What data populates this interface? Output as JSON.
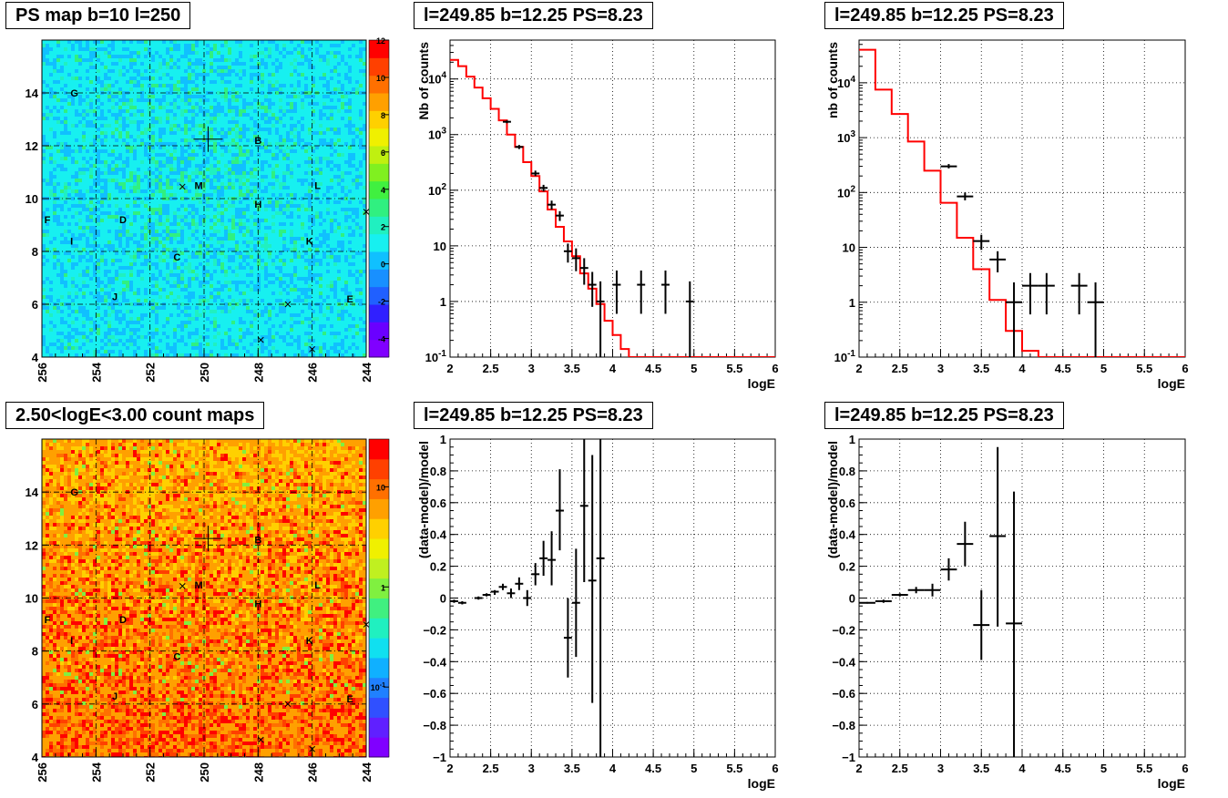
{
  "colors": {
    "frame": "#000000",
    "grid": "#000000",
    "model_line": "#ff0000",
    "data_marker": "#000000",
    "map_bg_ps": "#17f0f0",
    "map_bg_counts": "#f0a020"
  },
  "chart_data": [
    {
      "type": "heatmap",
      "id": "ps_map",
      "title": "PS map b=10 l=250",
      "xlabel": "",
      "ylabel": "",
      "x_ticks": [
        "256",
        "254",
        "252",
        "250",
        "248",
        "246",
        "244"
      ],
      "y_ticks": [
        "4",
        "6",
        "8",
        "10",
        "12",
        "14"
      ],
      "xlim": [
        256,
        244
      ],
      "ylim": [
        4,
        16
      ],
      "grid": true,
      "colorbar": {
        "scale": "linear",
        "range": [
          -5,
          12
        ],
        "ticks": [
          "12",
          "10",
          "8",
          "6",
          "4",
          "2",
          "0",
          "-2",
          "-4"
        ],
        "palette": [
          "#8000ff",
          "#6a00ff",
          "#3020ff",
          "#2060ff",
          "#1890ff",
          "#10c0ff",
          "#17f0f0",
          "#20f0c0",
          "#30f080",
          "#40f040",
          "#80f020",
          "#c0f010",
          "#f0f000",
          "#ffd000",
          "#ffa000",
          "#ff7000",
          "#ff4000",
          "#ff0000"
        ]
      },
      "labels": [
        {
          "text": "G",
          "l": 254.8,
          "b": 14.0
        },
        {
          "text": "B",
          "l": 248.0,
          "b": 12.2
        },
        {
          "text": "M",
          "l": 250.2,
          "b": 10.5
        },
        {
          "text": "L",
          "l": 245.8,
          "b": 10.5
        },
        {
          "text": "H",
          "l": 248.0,
          "b": 9.8
        },
        {
          "text": "F",
          "l": 255.8,
          "b": 9.2
        },
        {
          "text": "D",
          "l": 253.0,
          "b": 9.2
        },
        {
          "text": "I",
          "l": 254.9,
          "b": 8.4
        },
        {
          "text": "K",
          "l": 246.1,
          "b": 8.4
        },
        {
          "text": "C",
          "l": 251.0,
          "b": 7.8
        },
        {
          "text": "J",
          "l": 253.3,
          "b": 6.3
        },
        {
          "text": "E",
          "l": 244.6,
          "b": 6.2
        }
      ],
      "markers": [
        {
          "type": "cross_big",
          "l": 249.85,
          "b": 12.25
        },
        {
          "type": "x",
          "l": 250.8,
          "b": 10.45
        },
        {
          "type": "x",
          "l": 244.0,
          "b": 9.5
        },
        {
          "type": "x",
          "l": 246.9,
          "b": 6.0
        },
        {
          "type": "x",
          "l": 247.9,
          "b": 4.65
        },
        {
          "type": "x",
          "l": 246.0,
          "b": 4.3
        }
      ]
    },
    {
      "type": "line",
      "id": "spec_top_mid",
      "title": "l=249.85 b=12.25 PS=8.23",
      "xlabel": "logE",
      "ylabel": "Nb of counts",
      "xlim": [
        2,
        6
      ],
      "ylim": [
        0.1,
        50000
      ],
      "yscale": "log",
      "grid": true,
      "x_ticks": [
        "2",
        "2.5",
        "3",
        "3.5",
        "4",
        "4.5",
        "5",
        "5.5",
        "6"
      ],
      "y_ticks": [
        "10^-1",
        "1",
        "10",
        "10^2",
        "10^3",
        "10^4"
      ],
      "model_edges": [
        2.0,
        2.1,
        2.2,
        2.3,
        2.4,
        2.5,
        2.6,
        2.7,
        2.8,
        2.9,
        3.0,
        3.1,
        3.2,
        3.3,
        3.4,
        3.5,
        3.6,
        3.7,
        3.8,
        3.9,
        4.0,
        4.1,
        4.2,
        4.3,
        4.4,
        6.0
      ],
      "model_values": [
        22000,
        17000,
        11000,
        7000,
        4500,
        2900,
        1800,
        1000,
        600,
        320,
        180,
        95,
        45,
        22,
        12,
        6.5,
        3.2,
        1.7,
        0.9,
        0.45,
        0.25,
        0.14,
        0.1,
        0.1,
        0.1
      ],
      "data_points": [
        {
          "x": 2.7,
          "xerr": 0.05,
          "y": 1700,
          "ylo": 1600,
          "yhi": 1800
        },
        {
          "x": 2.85,
          "xerr": 0.05,
          "y": 600,
          "ylo": 550,
          "yhi": 650
        },
        {
          "x": 3.05,
          "xerr": 0.05,
          "y": 200,
          "ylo": 180,
          "yhi": 225
        },
        {
          "x": 3.15,
          "xerr": 0.05,
          "y": 110,
          "ylo": 95,
          "yhi": 125
        },
        {
          "x": 3.25,
          "xerr": 0.05,
          "y": 55,
          "ylo": 45,
          "yhi": 65
        },
        {
          "x": 3.35,
          "xerr": 0.05,
          "y": 35,
          "ylo": 28,
          "yhi": 42
        },
        {
          "x": 3.45,
          "xerr": 0.05,
          "y": 8,
          "ylo": 5,
          "yhi": 11
        },
        {
          "x": 3.55,
          "xerr": 0.05,
          "y": 6,
          "ylo": 3.5,
          "yhi": 9
        },
        {
          "x": 3.65,
          "xerr": 0.05,
          "y": 4,
          "ylo": 2,
          "yhi": 6
        },
        {
          "x": 3.75,
          "xerr": 0.05,
          "y": 2,
          "ylo": 0.8,
          "yhi": 3.4
        },
        {
          "x": 3.85,
          "xerr": 0.05,
          "y": 1,
          "ylo": 0.1,
          "yhi": 2.3
        },
        {
          "x": 4.05,
          "xerr": 0.05,
          "y": 2,
          "ylo": 0.6,
          "yhi": 3.6
        },
        {
          "x": 4.35,
          "xerr": 0.05,
          "y": 2,
          "ylo": 0.6,
          "yhi": 3.6
        },
        {
          "x": 4.65,
          "xerr": 0.05,
          "y": 2,
          "ylo": 0.6,
          "yhi": 3.6
        },
        {
          "x": 4.95,
          "xerr": 0.05,
          "y": 1,
          "ylo": 0.1,
          "yhi": 2.3
        }
      ]
    },
    {
      "type": "line",
      "id": "spec_top_right",
      "title": "l=249.85 b=12.25 PS=8.23",
      "xlabel": "logE",
      "ylabel": "nb of counts",
      "xlim": [
        2,
        6
      ],
      "ylim": [
        0.1,
        60000
      ],
      "yscale": "log",
      "grid": true,
      "x_ticks": [
        "2",
        "2.5",
        "3",
        "3.5",
        "4",
        "4.5",
        "5",
        "5.5",
        "6"
      ],
      "y_ticks": [
        "10^-1",
        "1",
        "10",
        "10^2",
        "10^3",
        "10^4"
      ],
      "model_edges": [
        2.0,
        2.2,
        2.4,
        2.6,
        2.8,
        3.0,
        3.2,
        3.4,
        3.6,
        3.8,
        4.0,
        4.2,
        4.4,
        6.0
      ],
      "model_values": [
        40000,
        7500,
        2700,
        850,
        250,
        65,
        15,
        4,
        1.1,
        0.3,
        0.13,
        0.1,
        0.1
      ],
      "data_points": [
        {
          "x": 3.1,
          "xerr": 0.1,
          "y": 300,
          "ylo": 275,
          "yhi": 330
        },
        {
          "x": 3.3,
          "xerr": 0.1,
          "y": 85,
          "ylo": 72,
          "yhi": 100
        },
        {
          "x": 3.5,
          "xerr": 0.1,
          "y": 13,
          "ylo": 9,
          "yhi": 17
        },
        {
          "x": 3.7,
          "xerr": 0.1,
          "y": 6,
          "ylo": 3.5,
          "yhi": 8.5
        },
        {
          "x": 3.9,
          "xerr": 0.1,
          "y": 1,
          "ylo": 0.1,
          "yhi": 2.3
        },
        {
          "x": 4.1,
          "xerr": 0.1,
          "y": 2,
          "ylo": 0.6,
          "yhi": 3.4
        },
        {
          "x": 4.3,
          "xerr": 0.1,
          "y": 2,
          "ylo": 0.6,
          "yhi": 3.4
        },
        {
          "x": 4.7,
          "xerr": 0.1,
          "y": 2,
          "ylo": 0.6,
          "yhi": 3.4
        },
        {
          "x": 4.9,
          "xerr": 0.1,
          "y": 1,
          "ylo": 0.1,
          "yhi": 2.3
        }
      ]
    },
    {
      "type": "heatmap",
      "id": "count_map",
      "title": "2.50<logE<3.00 count maps",
      "xlabel": "",
      "ylabel": "",
      "x_ticks": [
        "256",
        "254",
        "252",
        "250",
        "248",
        "246",
        "244"
      ],
      "y_ticks": [
        "4",
        "6",
        "8",
        "10",
        "12",
        "14"
      ],
      "xlim": [
        256,
        244
      ],
      "ylim": [
        4,
        16
      ],
      "grid": true,
      "colorbar": {
        "scale": "log",
        "range": [
          0.02,
          30
        ],
        "ticks": [
          "10",
          "1",
          "10^-1"
        ],
        "palette": [
          "#8000ff",
          "#6020ff",
          "#3050ff",
          "#2080ff",
          "#10b0ff",
          "#10e0f0",
          "#20f0c0",
          "#40f080",
          "#80f040",
          "#c0f020",
          "#f0f000",
          "#ffd000",
          "#ffa000",
          "#ff7000",
          "#ff4000",
          "#ff0000"
        ]
      },
      "labels": [
        {
          "text": "G",
          "l": 254.8,
          "b": 14.0
        },
        {
          "text": "B",
          "l": 248.0,
          "b": 12.2
        },
        {
          "text": "M",
          "l": 250.2,
          "b": 10.5
        },
        {
          "text": "L",
          "l": 245.8,
          "b": 10.5
        },
        {
          "text": "H",
          "l": 248.0,
          "b": 9.8
        },
        {
          "text": "F",
          "l": 255.8,
          "b": 9.2
        },
        {
          "text": "D",
          "l": 253.0,
          "b": 9.2
        },
        {
          "text": "I",
          "l": 254.9,
          "b": 8.4
        },
        {
          "text": "K",
          "l": 246.1,
          "b": 8.4
        },
        {
          "text": "C",
          "l": 251.0,
          "b": 7.8
        },
        {
          "text": "J",
          "l": 253.3,
          "b": 6.3
        },
        {
          "text": "E",
          "l": 244.6,
          "b": 6.2
        }
      ],
      "markers": [
        {
          "type": "cross_big",
          "l": 249.85,
          "b": 12.25
        },
        {
          "type": "x",
          "l": 250.8,
          "b": 10.45
        },
        {
          "type": "x",
          "l": 244.0,
          "b": 9.0
        },
        {
          "type": "x",
          "l": 246.9,
          "b": 6.0
        },
        {
          "type": "x",
          "l": 247.9,
          "b": 4.65
        },
        {
          "type": "x",
          "l": 246.0,
          "b": 4.3
        }
      ]
    },
    {
      "type": "scatter",
      "id": "resid_bottom_mid",
      "title": "l=249.85 b=12.25 PS=8.23",
      "xlabel": "logE",
      "ylabel": "(data-model)/model",
      "xlim": [
        2,
        6
      ],
      "ylim": [
        -1,
        1
      ],
      "grid": true,
      "x_ticks": [
        "2",
        "2.5",
        "3",
        "3.5",
        "4",
        "4.5",
        "5",
        "5.5",
        "6"
      ],
      "y_ticks": [
        "−1",
        "−0.8",
        "−0.6",
        "−0.4",
        "−0.2",
        "0",
        "0.2",
        "0.4",
        "0.6",
        "0.8",
        "1"
      ],
      "data_points": [
        {
          "x": 2.05,
          "xerr": 0.05,
          "y": -0.02,
          "ylo": -0.03,
          "yhi": -0.01
        },
        {
          "x": 2.15,
          "xerr": 0.05,
          "y": -0.03,
          "ylo": -0.04,
          "yhi": -0.02
        },
        {
          "x": 2.35,
          "xerr": 0.05,
          "y": 0.0,
          "ylo": -0.01,
          "yhi": 0.01
        },
        {
          "x": 2.45,
          "xerr": 0.05,
          "y": 0.02,
          "ylo": 0.01,
          "yhi": 0.03
        },
        {
          "x": 2.55,
          "xerr": 0.05,
          "y": 0.04,
          "ylo": 0.02,
          "yhi": 0.05
        },
        {
          "x": 2.65,
          "xerr": 0.05,
          "y": 0.07,
          "ylo": 0.05,
          "yhi": 0.09
        },
        {
          "x": 2.75,
          "xerr": 0.05,
          "y": 0.03,
          "ylo": 0.0,
          "yhi": 0.06
        },
        {
          "x": 2.85,
          "xerr": 0.05,
          "y": 0.09,
          "ylo": 0.05,
          "yhi": 0.13
        },
        {
          "x": 2.95,
          "xerr": 0.05,
          "y": 0.0,
          "ylo": -0.05,
          "yhi": 0.05
        },
        {
          "x": 3.05,
          "xerr": 0.05,
          "y": 0.15,
          "ylo": 0.08,
          "yhi": 0.22
        },
        {
          "x": 3.15,
          "xerr": 0.05,
          "y": 0.25,
          "ylo": 0.14,
          "yhi": 0.36
        },
        {
          "x": 3.25,
          "xerr": 0.05,
          "y": 0.24,
          "ylo": 0.08,
          "yhi": 0.42
        },
        {
          "x": 3.35,
          "xerr": 0.05,
          "y": 0.55,
          "ylo": 0.3,
          "yhi": 0.81
        },
        {
          "x": 3.45,
          "xerr": 0.05,
          "y": -0.25,
          "ylo": -0.5,
          "yhi": 0.0
        },
        {
          "x": 3.55,
          "xerr": 0.05,
          "y": -0.03,
          "ylo": -0.37,
          "yhi": 0.31
        },
        {
          "x": 3.65,
          "xerr": 0.05,
          "y": 0.58,
          "ylo": 0.1,
          "yhi": 1.0
        },
        {
          "x": 3.75,
          "xerr": 0.05,
          "y": 0.11,
          "ylo": -0.66,
          "yhi": 0.9
        },
        {
          "x": 3.85,
          "xerr": 0.05,
          "y": 0.25,
          "ylo": -1.0,
          "yhi": 1.0
        }
      ]
    },
    {
      "type": "scatter",
      "id": "resid_bottom_right",
      "title": "l=249.85 b=12.25 PS=8.23",
      "xlabel": "logE",
      "ylabel": "(data-model)/model",
      "xlim": [
        2,
        6
      ],
      "ylim": [
        -1,
        1
      ],
      "grid": true,
      "x_ticks": [
        "2",
        "2.5",
        "3",
        "3.5",
        "4",
        "4.5",
        "5",
        "5.5",
        "6"
      ],
      "y_ticks": [
        "−1",
        "−0.8",
        "−0.6",
        "−0.4",
        "−0.2",
        "0",
        "0.2",
        "0.4",
        "0.6",
        "0.8",
        "1"
      ],
      "data_points": [
        {
          "x": 2.1,
          "xerr": 0.1,
          "y": -0.03,
          "ylo": -0.035,
          "yhi": -0.025
        },
        {
          "x": 2.3,
          "xerr": 0.1,
          "y": -0.02,
          "ylo": -0.03,
          "yhi": -0.01
        },
        {
          "x": 2.5,
          "xerr": 0.1,
          "y": 0.02,
          "ylo": 0.01,
          "yhi": 0.03
        },
        {
          "x": 2.7,
          "xerr": 0.1,
          "y": 0.05,
          "ylo": 0.03,
          "yhi": 0.07
        },
        {
          "x": 2.9,
          "xerr": 0.1,
          "y": 0.05,
          "ylo": 0.01,
          "yhi": 0.09
        },
        {
          "x": 3.1,
          "xerr": 0.1,
          "y": 0.18,
          "ylo": 0.11,
          "yhi": 0.25
        },
        {
          "x": 3.3,
          "xerr": 0.1,
          "y": 0.34,
          "ylo": 0.2,
          "yhi": 0.48
        },
        {
          "x": 3.5,
          "xerr": 0.1,
          "y": -0.17,
          "ylo": -0.39,
          "yhi": 0.05
        },
        {
          "x": 3.7,
          "xerr": 0.1,
          "y": 0.39,
          "ylo": -0.18,
          "yhi": 0.95
        },
        {
          "x": 3.9,
          "xerr": 0.1,
          "y": -0.16,
          "ylo": -1.0,
          "yhi": 0.67
        }
      ]
    }
  ]
}
